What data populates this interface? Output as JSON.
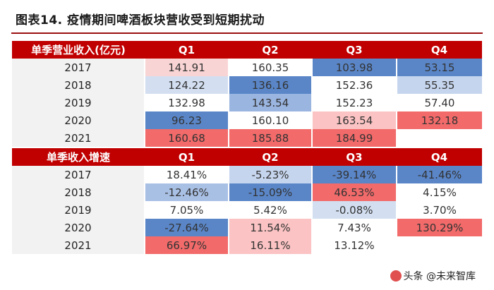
{
  "title": "图表14. 疫情期间啤酒板块营收受到短期扰动",
  "sections": [
    {
      "header": "单季营业收入(亿元)",
      "quarters": [
        "Q1",
        "Q2",
        "Q3",
        "Q4"
      ],
      "rows": [
        {
          "year": "2017",
          "cells": [
            {
              "v": "141.91",
              "c": "#f9d4d4"
            },
            {
              "v": "160.35",
              "c": "#ffffff"
            },
            {
              "v": "103.98",
              "c": "#5a86c8"
            },
            {
              "v": "53.15",
              "c": "#5a86c8"
            }
          ]
        },
        {
          "year": "2018",
          "cells": [
            {
              "v": "124.22",
              "c": "#d3dff1"
            },
            {
              "v": "136.16",
              "c": "#5a86c8"
            },
            {
              "v": "152.36",
              "c": "#ffffff"
            },
            {
              "v": "55.35",
              "c": "#c6d5ee"
            }
          ]
        },
        {
          "year": "2019",
          "cells": [
            {
              "v": "132.98",
              "c": "#ffffff"
            },
            {
              "v": "143.54",
              "c": "#9ab5e0"
            },
            {
              "v": "152.23",
              "c": "#ffffff"
            },
            {
              "v": "57.40",
              "c": "#ffffff"
            }
          ]
        },
        {
          "year": "2020",
          "cells": [
            {
              "v": "96.23",
              "c": "#5a86c8"
            },
            {
              "v": "160.10",
              "c": "#ffffff"
            },
            {
              "v": "163.54",
              "c": "#fbc3c3"
            },
            {
              "v": "132.18",
              "c": "#f26a6a"
            }
          ]
        },
        {
          "year": "2021",
          "cells": [
            {
              "v": "160.68",
              "c": "#f26a6a"
            },
            {
              "v": "185.88",
              "c": "#f26a6a"
            },
            {
              "v": "184.99",
              "c": "#f26a6a"
            },
            {
              "v": "",
              "c": "#ffffff"
            }
          ]
        }
      ]
    },
    {
      "header": "单季收入增速",
      "quarters": [
        "Q1",
        "Q2",
        "Q3",
        "Q4"
      ],
      "rows": [
        {
          "year": "2017",
          "cells": [
            {
              "v": "18.41%",
              "c": "#ffffff"
            },
            {
              "v": "-5.23%",
              "c": "#c6d5ee"
            },
            {
              "v": "-39.14%",
              "c": "#5a86c8"
            },
            {
              "v": "-41.46%",
              "c": "#5a86c8"
            }
          ]
        },
        {
          "year": "2018",
          "cells": [
            {
              "v": "-12.46%",
              "c": "#a9c0e5"
            },
            {
              "v": "-15.09%",
              "c": "#5a86c8"
            },
            {
              "v": "46.53%",
              "c": "#f26a6a"
            },
            {
              "v": "4.15%",
              "c": "#ffffff"
            }
          ]
        },
        {
          "year": "2019",
          "cells": [
            {
              "v": "7.05%",
              "c": "#ffffff"
            },
            {
              "v": "5.42%",
              "c": "#ffffff"
            },
            {
              "v": "-0.08%",
              "c": "#d3dff1"
            },
            {
              "v": "3.70%",
              "c": "#ffffff"
            }
          ]
        },
        {
          "year": "2020",
          "cells": [
            {
              "v": "-27.64%",
              "c": "#5a86c8"
            },
            {
              "v": "11.54%",
              "c": "#fbc3c3"
            },
            {
              "v": "7.43%",
              "c": "#ffffff"
            },
            {
              "v": "130.29%",
              "c": "#f26a6a"
            }
          ]
        },
        {
          "year": "2021",
          "cells": [
            {
              "v": "66.97%",
              "c": "#f26a6a"
            },
            {
              "v": "16.11%",
              "c": "#fbc3c3"
            },
            {
              "v": "13.12%",
              "c": "#ffffff"
            },
            {
              "v": "",
              "c": "#ffffff"
            }
          ]
        }
      ]
    }
  ],
  "watermark": "头条 @未来智库"
}
